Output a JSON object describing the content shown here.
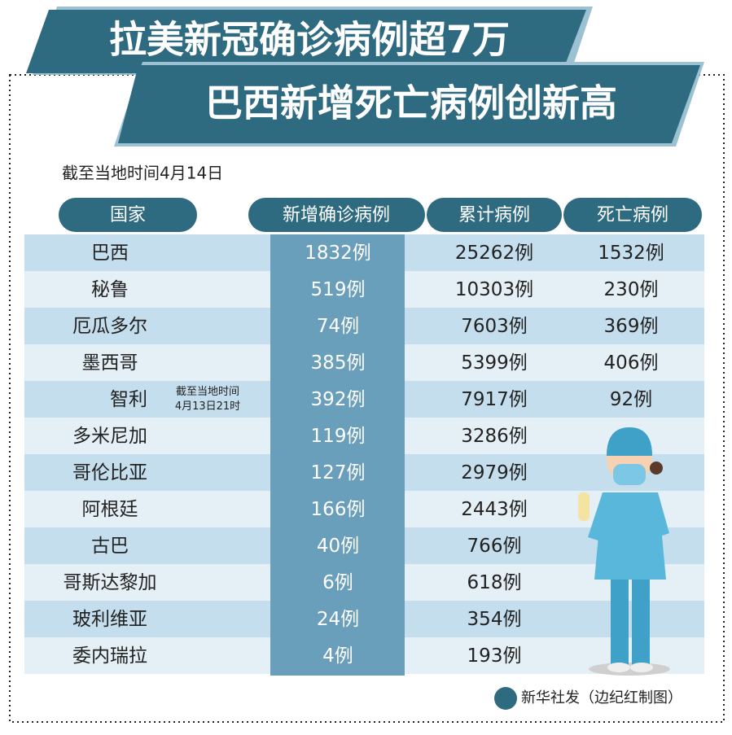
{
  "header": {
    "title_line1": "拉美新冠确诊病例超7万",
    "title_line2": "巴西新增死亡病例创新高",
    "subtitle": "截至当地时间4月14日"
  },
  "table": {
    "columns": [
      "国家",
      "新增确诊病例",
      "累计病例",
      "死亡病例"
    ],
    "rows": [
      {
        "country": "巴西",
        "new_cases": "1832例",
        "total": "25262例",
        "deaths": "1532例"
      },
      {
        "country": "秘鲁",
        "new_cases": "519例",
        "total": "10303例",
        "deaths": "230例"
      },
      {
        "country": "厄瓜多尔",
        "new_cases": "74例",
        "total": "7603例",
        "deaths": "369例"
      },
      {
        "country": "墨西哥",
        "new_cases": "385例",
        "total": "5399例",
        "deaths": "406例"
      },
      {
        "country": "智利",
        "note": [
          "截至当地时间",
          "4月13日21时"
        ],
        "new_cases": "392例",
        "total": "7917例",
        "deaths": "92例"
      },
      {
        "country": "多米尼加",
        "new_cases": "119例",
        "total": "3286例"
      },
      {
        "country": "哥伦比亚",
        "new_cases": "127例",
        "total": "2979例"
      },
      {
        "country": "阿根廷",
        "new_cases": "166例",
        "total": "2443例"
      },
      {
        "country": "古巴",
        "new_cases": "40例",
        "total": "766例"
      },
      {
        "country": "哥斯达黎加",
        "new_cases": "6例",
        "total": "618例"
      },
      {
        "country": "玻利维亚",
        "new_cases": "24例",
        "total": "354例"
      },
      {
        "country": "委内瑞拉",
        "new_cases": "4例",
        "total": "193例"
      }
    ]
  },
  "footer": {
    "credit": "新华社发（边纪红制图）"
  }
}
